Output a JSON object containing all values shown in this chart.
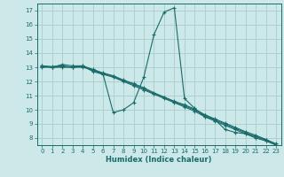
{
  "xlabel": "Humidex (Indice chaleur)",
  "bg_color": "#cce8e8",
  "grid_color": "#aacccc",
  "line_color": "#1a6b6b",
  "xlim": [
    -0.5,
    23.5
  ],
  "ylim": [
    7.5,
    17.5
  ],
  "yticks": [
    8,
    9,
    10,
    11,
    12,
    13,
    14,
    15,
    16,
    17
  ],
  "xticks": [
    0,
    1,
    2,
    3,
    4,
    5,
    6,
    7,
    8,
    9,
    10,
    11,
    12,
    13,
    14,
    15,
    16,
    17,
    18,
    19,
    20,
    21,
    22,
    23
  ],
  "line1_x": [
    0,
    1,
    2,
    3,
    4,
    5,
    6,
    7,
    8,
    9,
    10,
    11,
    12,
    13,
    14,
    15,
    16,
    17,
    18,
    19,
    20,
    21,
    22,
    23
  ],
  "line1_y": [
    13.1,
    13.0,
    13.2,
    13.1,
    13.1,
    12.7,
    12.5,
    9.8,
    10.0,
    10.5,
    12.3,
    15.3,
    16.9,
    17.2,
    10.8,
    10.1,
    9.5,
    9.3,
    8.6,
    8.4,
    8.3,
    8.1,
    7.9,
    7.5
  ],
  "line2_x": [
    0,
    1,
    2,
    3,
    4,
    5,
    6,
    7,
    8,
    9,
    10,
    11,
    12,
    13,
    14,
    15,
    16,
    17,
    18,
    19,
    20,
    21,
    22,
    23
  ],
  "line2_y": [
    13.0,
    13.0,
    13.0,
    13.0,
    13.0,
    12.8,
    12.5,
    12.3,
    12.0,
    11.7,
    11.4,
    11.1,
    10.8,
    10.5,
    10.2,
    9.9,
    9.5,
    9.2,
    8.9,
    8.6,
    8.3,
    8.0,
    7.8,
    7.5
  ],
  "line3_x": [
    0,
    1,
    2,
    3,
    4,
    5,
    6,
    7,
    8,
    9,
    10,
    11,
    12,
    13,
    14,
    15,
    16,
    17,
    18,
    19,
    20,
    21,
    22,
    23
  ],
  "line3_y": [
    13.1,
    13.05,
    13.1,
    13.0,
    13.1,
    12.85,
    12.6,
    12.4,
    12.1,
    11.85,
    11.55,
    11.2,
    10.9,
    10.6,
    10.35,
    10.05,
    9.65,
    9.35,
    9.05,
    8.75,
    8.45,
    8.2,
    7.9,
    7.6
  ],
  "line4_x": [
    0,
    1,
    2,
    3,
    4,
    5,
    6,
    7,
    8,
    9,
    10,
    11,
    12,
    13,
    14,
    15,
    16,
    17,
    18,
    19,
    20,
    21,
    22,
    23
  ],
  "line4_y": [
    13.05,
    13.0,
    13.05,
    13.0,
    13.05,
    12.82,
    12.55,
    12.35,
    12.05,
    11.78,
    11.48,
    11.15,
    10.85,
    10.55,
    10.28,
    9.98,
    9.6,
    9.28,
    8.98,
    8.68,
    8.38,
    8.1,
    7.84,
    7.53
  ]
}
